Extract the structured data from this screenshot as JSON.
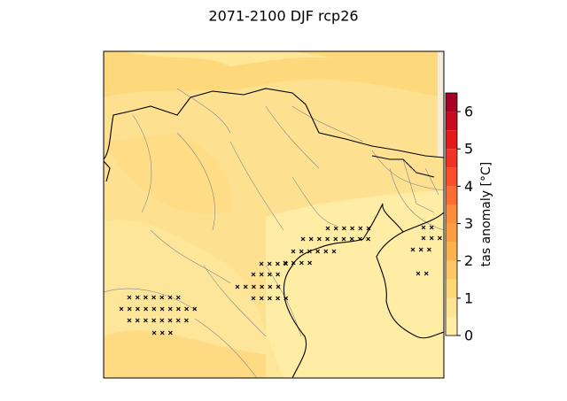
{
  "chart_data": {
    "type": "map",
    "title": "2071-2100 DJF rcp26",
    "colorbar": {
      "label": "tas anomaly [°C]",
      "lim": [
        0,
        6.5
      ],
      "ticks": [
        0,
        1,
        2,
        3,
        4,
        5,
        6
      ],
      "levels": [
        0,
        0.5,
        1,
        1.5,
        2,
        2.5,
        3,
        3.5,
        4,
        4.5,
        5,
        5.5,
        6,
        6.5
      ],
      "colors": [
        "#ffeea4",
        "#fee593",
        "#fed976",
        "#fec965",
        "#feb24c",
        "#fd9d43",
        "#fd8d3c",
        "#fc6c33",
        "#fc4e2a",
        "#ef3423",
        "#e31a1c",
        "#c90b22",
        "#a50026"
      ]
    }
  }
}
